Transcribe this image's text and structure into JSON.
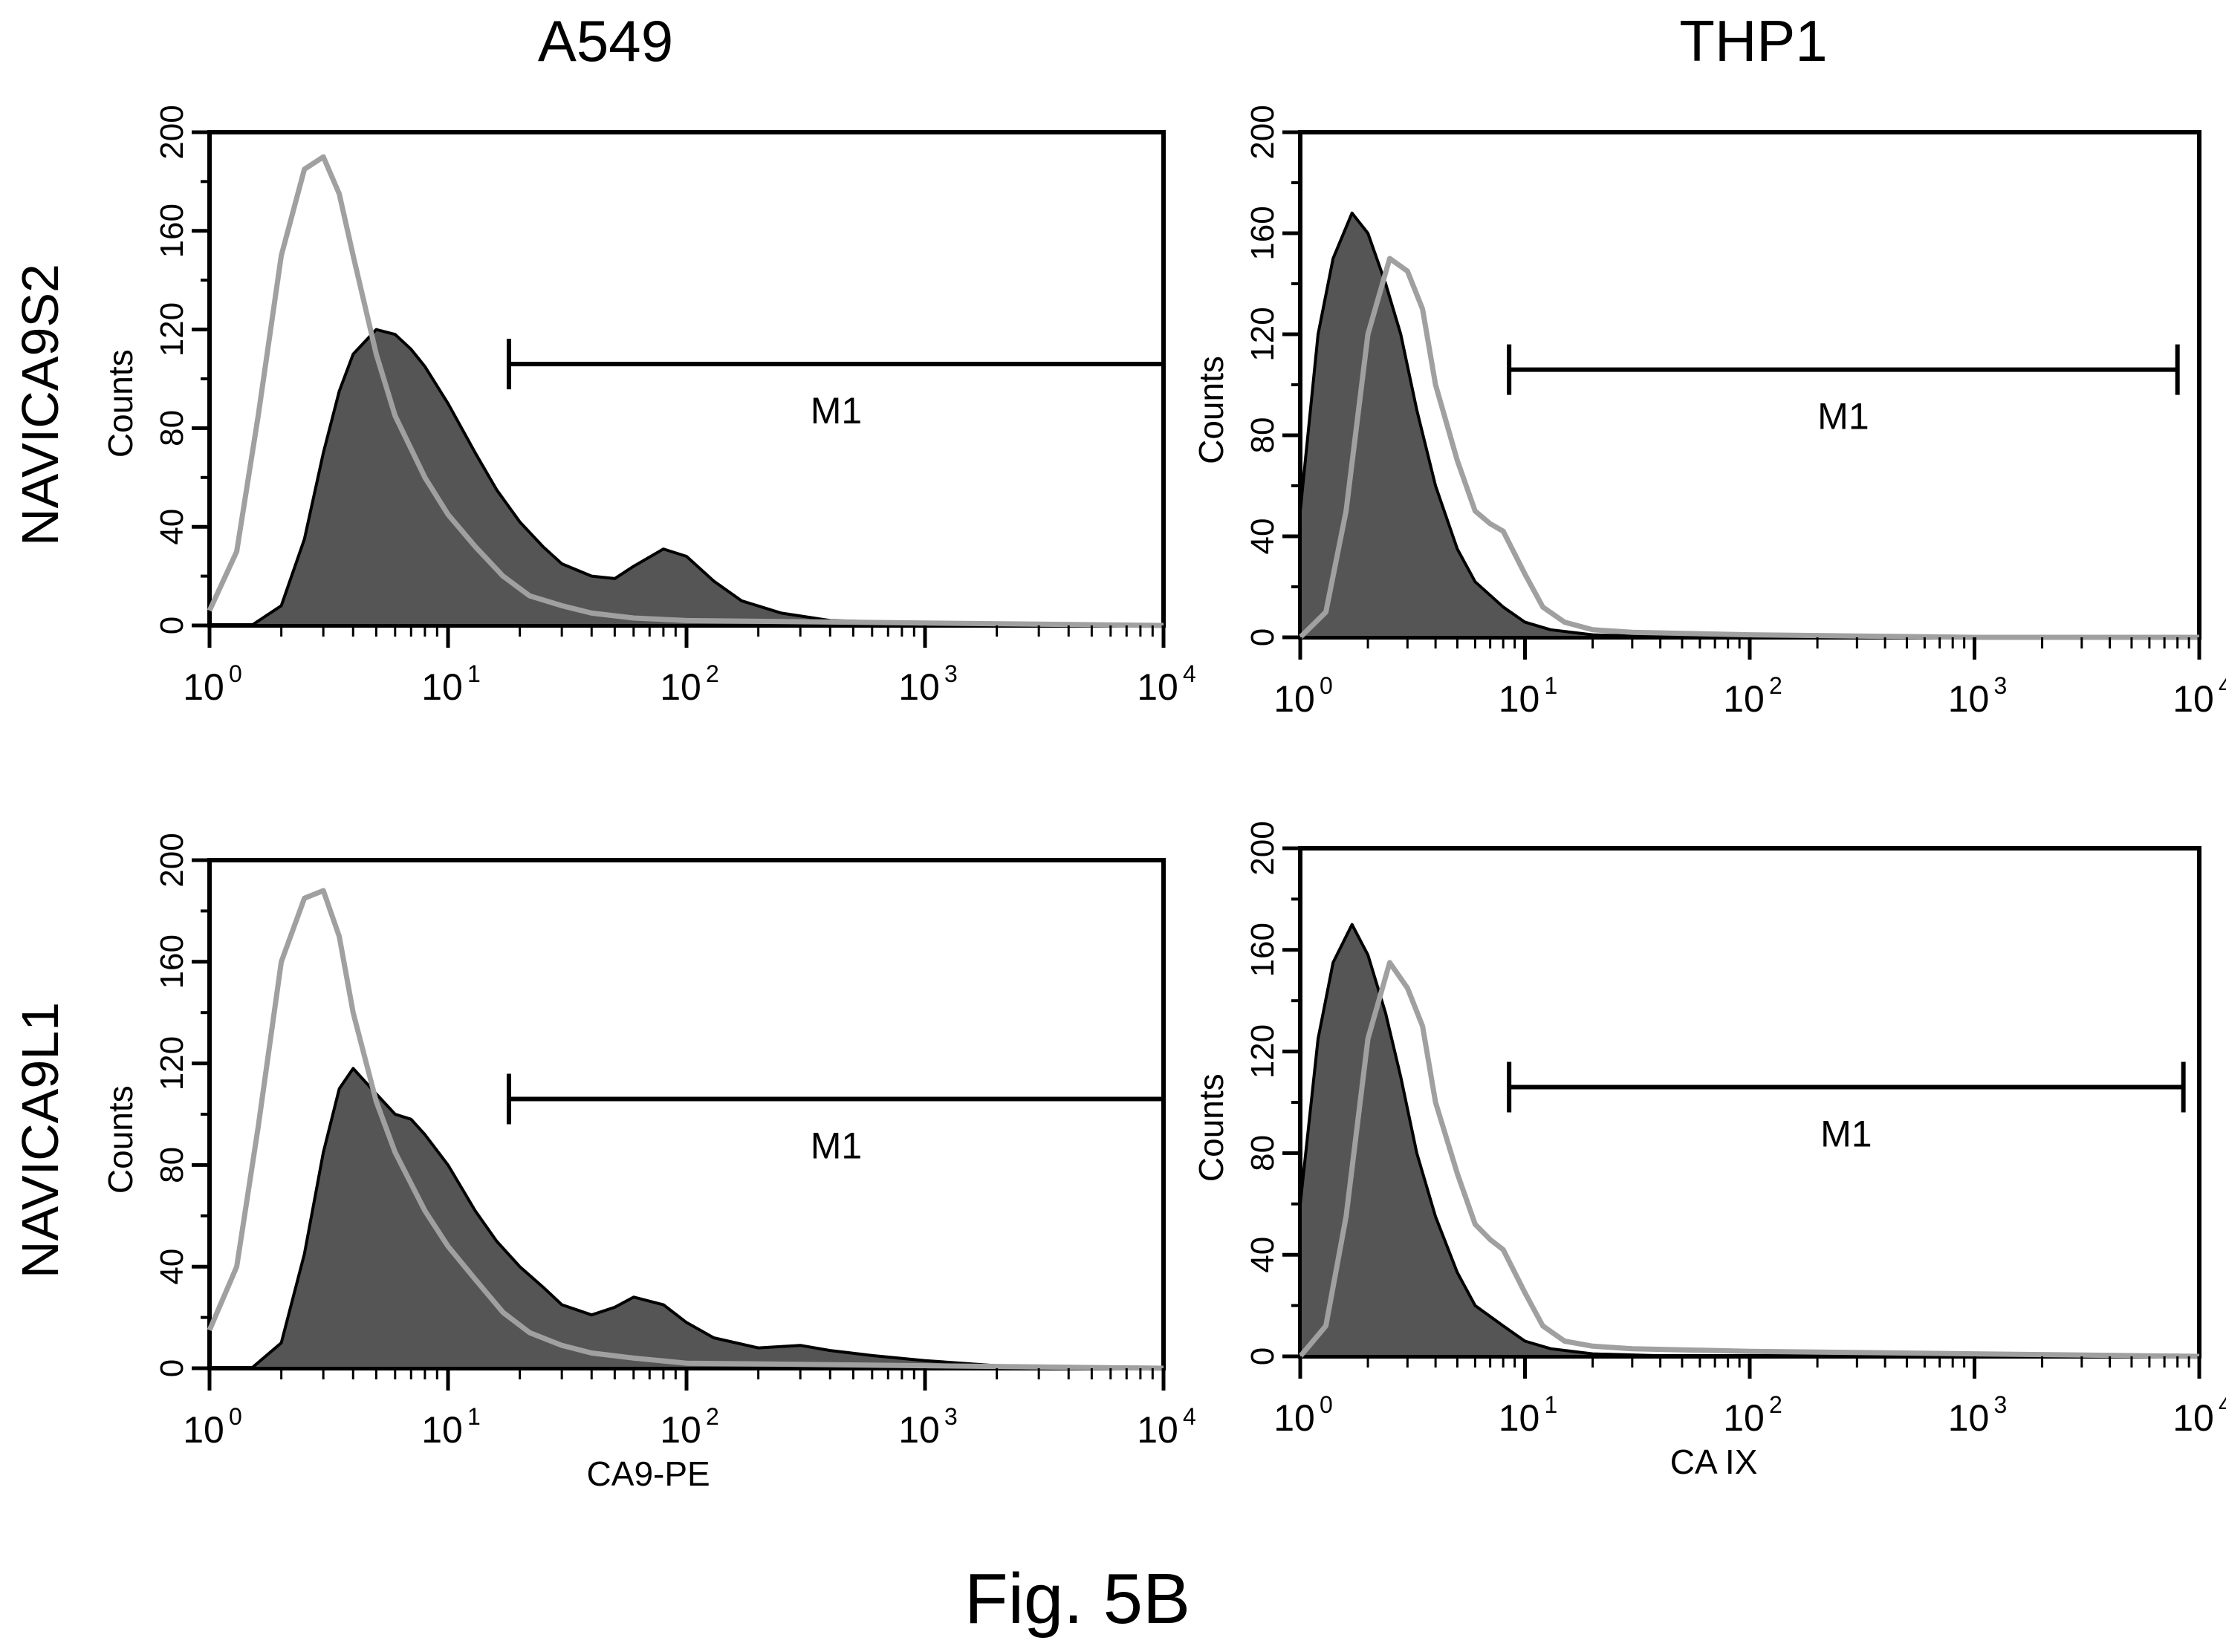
{
  "figure": {
    "caption": "Fig. 5B",
    "column_titles": [
      "A549",
      "THP1"
    ],
    "row_titles": [
      "NAVICA9S2",
      "NAVICA9L1"
    ]
  },
  "colors": {
    "control": "#a0a0a0",
    "stained_fill": "#555555",
    "stained_outline": "#000000",
    "frame": "#000000"
  },
  "chart_data": [
    {
      "type": "area",
      "cell": "A549",
      "antibody": "NAVICA9S2",
      "xlabel": "",
      "ylabel": "Counts",
      "xscale": "log",
      "xlim": [
        1,
        10000
      ],
      "ylim": [
        0,
        200
      ],
      "yticks": [
        0,
        40,
        80,
        120,
        160,
        200
      ],
      "xtick_exponents": [
        "0",
        "1",
        "2",
        "3",
        "4"
      ],
      "gate": {
        "label": "M1",
        "range": [
          18,
          10000
        ]
      },
      "series": [
        {
          "role": "control",
          "x": [
            1.0,
            1.3,
            1.6,
            2.0,
            2.5,
            3.0,
            3.5,
            4.0,
            5.0,
            6.0,
            8.0,
            10,
            13,
            17,
            22,
            30,
            40,
            60,
            100,
            1000,
            10000
          ],
          "y": [
            6,
            30,
            85,
            150,
            185,
            190,
            175,
            150,
            110,
            85,
            60,
            45,
            32,
            20,
            12,
            8,
            5,
            3,
            2,
            1,
            0
          ]
        },
        {
          "role": "stained",
          "x": [
            1.0,
            1.5,
            2.0,
            2.5,
            3.0,
            3.5,
            4.0,
            5.0,
            6.0,
            7.0,
            8.0,
            10,
            13,
            16,
            20,
            25,
            30,
            40,
            50,
            60,
            80,
            100,
            130,
            170,
            250,
            400,
            1000,
            10000
          ],
          "y": [
            0,
            0,
            8,
            35,
            70,
            95,
            110,
            120,
            118,
            112,
            105,
            90,
            70,
            55,
            42,
            32,
            25,
            20,
            19,
            24,
            31,
            28,
            18,
            10,
            5,
            2,
            1,
            0
          ]
        }
      ]
    },
    {
      "type": "area",
      "cell": "THP1",
      "antibody": "NAVICA9S2",
      "xlabel": "",
      "ylabel": "Counts",
      "xscale": "log",
      "xlim": [
        1,
        10000
      ],
      "ylim": [
        0,
        200
      ],
      "yticks": [
        0,
        40,
        80,
        120,
        160,
        200
      ],
      "xtick_exponents": [
        "0",
        "1",
        "2",
        "3",
        "4"
      ],
      "gate": {
        "label": "M1",
        "range": [
          8.5,
          8000
        ]
      },
      "series": [
        {
          "role": "control",
          "x": [
            1.0,
            1.3,
            1.6,
            2.0,
            2.5,
            3.0,
            3.5,
            4.0,
            5.0,
            6.0,
            7.0,
            8.0,
            10,
            12,
            15,
            20,
            30,
            100,
            1000,
            10000
          ],
          "y": [
            0,
            10,
            50,
            120,
            150,
            145,
            130,
            100,
            70,
            50,
            45,
            42,
            25,
            12,
            6,
            3,
            2,
            1,
            0,
            0
          ]
        },
        {
          "role": "stained",
          "x": [
            1.0,
            1.2,
            1.4,
            1.7,
            2.0,
            2.4,
            2.8,
            3.3,
            4.0,
            5.0,
            6.0,
            8.0,
            10,
            13,
            20,
            50,
            10000
          ],
          "y": [
            50,
            120,
            150,
            168,
            160,
            140,
            120,
            90,
            60,
            35,
            22,
            12,
            6,
            3,
            1,
            0,
            0
          ]
        }
      ]
    },
    {
      "type": "area",
      "cell": "A549",
      "antibody": "NAVICA9L1",
      "xlabel": "CA9-PE",
      "ylabel": "Counts",
      "xscale": "log",
      "xlim": [
        1,
        10000
      ],
      "ylim": [
        0,
        200
      ],
      "yticks": [
        0,
        40,
        80,
        120,
        160,
        200
      ],
      "xtick_exponents": [
        "0",
        "1",
        "2",
        "3",
        "4"
      ],
      "gate": {
        "label": "M1",
        "range": [
          18,
          10000
        ]
      },
      "series": [
        {
          "role": "control",
          "x": [
            1.0,
            1.3,
            1.6,
            2.0,
            2.5,
            3.0,
            3.5,
            4.0,
            5.0,
            6.0,
            8.0,
            10,
            13,
            17,
            22,
            30,
            40,
            60,
            100,
            1000,
            10000
          ],
          "y": [
            15,
            40,
            95,
            160,
            185,
            188,
            170,
            140,
            105,
            85,
            62,
            48,
            35,
            22,
            14,
            9,
            6,
            4,
            2,
            1,
            0
          ]
        },
        {
          "role": "stained",
          "x": [
            1.0,
            1.5,
            2.0,
            2.5,
            3.0,
            3.5,
            4.0,
            5.0,
            6.0,
            7.0,
            8.0,
            10,
            13,
            16,
            20,
            25,
            30,
            40,
            50,
            60,
            80,
            100,
            130,
            200,
            300,
            400,
            600,
            1000,
            2000,
            10000
          ],
          "y": [
            0,
            0,
            10,
            45,
            85,
            110,
            118,
            108,
            100,
            98,
            92,
            80,
            62,
            50,
            40,
            32,
            25,
            21,
            24,
            28,
            25,
            18,
            12,
            8,
            9,
            7,
            5,
            3,
            1,
            0
          ]
        }
      ]
    },
    {
      "type": "area",
      "cell": "THP1",
      "antibody": "NAVICA9L1",
      "xlabel": "CA IX",
      "ylabel": "Counts",
      "xscale": "log",
      "xlim": [
        1,
        10000
      ],
      "ylim": [
        0,
        200
      ],
      "yticks": [
        0,
        40,
        80,
        120,
        160,
        200
      ],
      "xtick_exponents": [
        "0",
        "1",
        "2",
        "3",
        "4"
      ],
      "gate": {
        "label": "M1",
        "range": [
          8.5,
          8500
        ]
      },
      "series": [
        {
          "role": "control",
          "x": [
            1.0,
            1.3,
            1.6,
            2.0,
            2.5,
            3.0,
            3.5,
            4.0,
            5.0,
            6.0,
            7.0,
            8.0,
            10,
            12,
            15,
            20,
            30,
            100,
            1000,
            10000
          ],
          "y": [
            0,
            12,
            55,
            125,
            155,
            145,
            130,
            100,
            72,
            52,
            46,
            42,
            25,
            12,
            6,
            4,
            3,
            2,
            1,
            0
          ]
        },
        {
          "role": "stained",
          "x": [
            1.0,
            1.2,
            1.4,
            1.7,
            2.0,
            2.4,
            2.8,
            3.3,
            4.0,
            5.0,
            6.0,
            8.0,
            10,
            13,
            20,
            50,
            10000
          ],
          "y": [
            60,
            125,
            155,
            170,
            158,
            135,
            110,
            80,
            55,
            33,
            20,
            12,
            6,
            3,
            1,
            0,
            0
          ]
        }
      ]
    }
  ]
}
